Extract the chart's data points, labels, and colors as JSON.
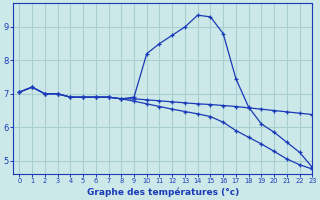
{
  "xlabel": "Graphe des températures (°c)",
  "background_color": "#cce8e8",
  "grid_color": "#a8d0d0",
  "line_color": "#1a3ab8",
  "xlim": [
    -0.5,
    23
  ],
  "ylim": [
    4.6,
    9.7
  ],
  "yticks": [
    5,
    6,
    7,
    8,
    9
  ],
  "xticks": [
    0,
    1,
    2,
    3,
    4,
    5,
    6,
    7,
    8,
    9,
    10,
    11,
    12,
    13,
    14,
    15,
    16,
    17,
    18,
    19,
    20,
    21,
    22,
    23
  ],
  "curve1_x": [
    0,
    1,
    2,
    3,
    4,
    5,
    6,
    7,
    8,
    9,
    10,
    11,
    12,
    13,
    14,
    15,
    16,
    17,
    18,
    19,
    20,
    21,
    22,
    23
  ],
  "curve1_y": [
    7.05,
    7.2,
    7.0,
    7.0,
    6.9,
    6.9,
    6.9,
    6.9,
    6.85,
    6.9,
    8.2,
    8.5,
    8.75,
    9.0,
    9.35,
    9.3,
    8.8,
    7.45,
    6.6,
    6.1,
    5.85,
    5.55,
    5.25,
    4.8
  ],
  "curve2_x": [
    0,
    1,
    2,
    3,
    4,
    5,
    6,
    7,
    8,
    9,
    10,
    11,
    12,
    13,
    14,
    15,
    16,
    17,
    18,
    19,
    20,
    21,
    22,
    23
  ],
  "curve2_y": [
    7.05,
    7.2,
    7.0,
    7.0,
    6.9,
    6.9,
    6.9,
    6.9,
    6.85,
    6.85,
    6.82,
    6.79,
    6.76,
    6.73,
    6.7,
    6.68,
    6.65,
    6.62,
    6.58,
    6.54,
    6.5,
    6.46,
    6.42,
    6.38
  ],
  "curve3_x": [
    0,
    1,
    2,
    3,
    4,
    5,
    6,
    7,
    8,
    9,
    10,
    11,
    12,
    13,
    14,
    15,
    16,
    17,
    18,
    19,
    20,
    21,
    22,
    23
  ],
  "curve3_y": [
    7.05,
    7.2,
    7.0,
    7.0,
    6.9,
    6.9,
    6.9,
    6.9,
    6.85,
    6.78,
    6.7,
    6.62,
    6.54,
    6.47,
    6.4,
    6.32,
    6.15,
    5.9,
    5.7,
    5.5,
    5.28,
    5.05,
    4.88,
    4.75
  ]
}
